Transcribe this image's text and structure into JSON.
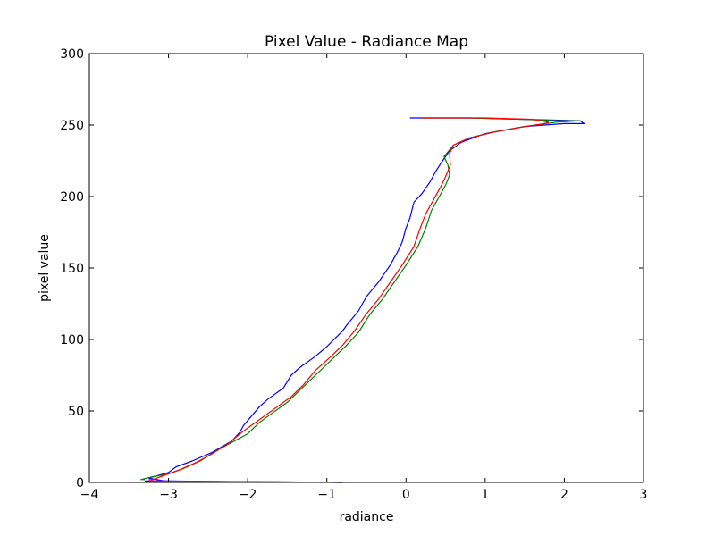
{
  "chart_data": {
    "type": "line",
    "title": "Pixel Value - Radiance Map",
    "xlabel": "radiance",
    "ylabel": "pixel value",
    "xlim": [
      -4,
      3
    ],
    "ylim": [
      0,
      300
    ],
    "xticks": [
      -4,
      -3,
      -2,
      -1,
      0,
      1,
      2,
      3
    ],
    "yticks": [
      0,
      50,
      100,
      150,
      200,
      250,
      300
    ],
    "grid": false,
    "legend": "none",
    "series": [
      {
        "color": "#0000ff",
        "points": [
          [
            -0.8,
            0
          ],
          [
            -3.05,
            1
          ],
          [
            -3.25,
            3
          ],
          [
            -3.0,
            7
          ],
          [
            -2.9,
            11
          ],
          [
            -2.7,
            15
          ],
          [
            -2.45,
            21
          ],
          [
            -2.2,
            29
          ],
          [
            -2.1,
            35
          ],
          [
            -2.05,
            40
          ],
          [
            -1.85,
            53
          ],
          [
            -1.75,
            58
          ],
          [
            -1.55,
            66
          ],
          [
            -1.45,
            75
          ],
          [
            -1.35,
            80
          ],
          [
            -1.15,
            88
          ],
          [
            -1.0,
            95
          ],
          [
            -0.8,
            106
          ],
          [
            -0.75,
            110
          ],
          [
            -0.6,
            120
          ],
          [
            -0.5,
            130
          ],
          [
            -0.35,
            140
          ],
          [
            -0.2,
            152
          ],
          [
            -0.1,
            162
          ],
          [
            -0.05,
            168
          ],
          [
            0.0,
            178
          ],
          [
            0.05,
            185
          ],
          [
            0.1,
            196
          ],
          [
            0.2,
            202
          ],
          [
            0.3,
            210
          ],
          [
            0.38,
            218
          ],
          [
            0.45,
            224
          ],
          [
            0.55,
            232
          ],
          [
            0.7,
            238
          ],
          [
            1.0,
            244
          ],
          [
            1.5,
            249
          ],
          [
            2.0,
            251
          ],
          [
            2.25,
            251
          ],
          [
            2.2,
            253
          ],
          [
            1.5,
            254
          ],
          [
            0.8,
            255
          ],
          [
            0.05,
            255
          ]
        ]
      },
      {
        "color": "#007f00",
        "points": [
          [
            -3.3,
            2
          ],
          [
            -3.35,
            2
          ],
          [
            -3.2,
            4
          ],
          [
            -3.0,
            6
          ],
          [
            -2.8,
            10
          ],
          [
            -2.6,
            15
          ],
          [
            -2.4,
            22
          ],
          [
            -2.2,
            28
          ],
          [
            -2.0,
            34
          ],
          [
            -1.85,
            42
          ],
          [
            -1.7,
            48
          ],
          [
            -1.5,
            56
          ],
          [
            -1.35,
            64
          ],
          [
            -1.2,
            72
          ],
          [
            -1.05,
            80
          ],
          [
            -0.9,
            88
          ],
          [
            -0.75,
            96
          ],
          [
            -0.6,
            105
          ],
          [
            -0.45,
            118
          ],
          [
            -0.3,
            128
          ],
          [
            -0.15,
            140
          ],
          [
            0.0,
            152
          ],
          [
            0.15,
            165
          ],
          [
            0.25,
            178
          ],
          [
            0.32,
            190
          ],
          [
            0.42,
            200
          ],
          [
            0.5,
            208
          ],
          [
            0.55,
            215
          ],
          [
            0.53,
            222
          ],
          [
            0.48,
            228
          ],
          [
            0.6,
            236
          ],
          [
            0.8,
            241
          ],
          [
            1.1,
            245
          ],
          [
            1.5,
            249
          ],
          [
            1.9,
            252
          ],
          [
            2.2,
            253
          ],
          [
            1.9,
            253
          ],
          [
            1.5,
            254
          ],
          [
            0.8,
            255
          ],
          [
            0.2,
            255
          ]
        ]
      },
      {
        "color": "#ff0000",
        "points": [
          [
            -3.25,
            2
          ],
          [
            -3.2,
            2
          ],
          [
            -3.05,
            5
          ],
          [
            -2.85,
            9
          ],
          [
            -2.65,
            14
          ],
          [
            -2.45,
            20
          ],
          [
            -2.25,
            27
          ],
          [
            -2.05,
            36
          ],
          [
            -1.85,
            44
          ],
          [
            -1.65,
            52
          ],
          [
            -1.45,
            60
          ],
          [
            -1.3,
            68
          ],
          [
            -1.15,
            78
          ],
          [
            -0.95,
            88
          ],
          [
            -0.8,
            96
          ],
          [
            -0.65,
            106
          ],
          [
            -0.5,
            118
          ],
          [
            -0.35,
            128
          ],
          [
            -0.2,
            140
          ],
          [
            -0.05,
            152
          ],
          [
            0.1,
            165
          ],
          [
            0.18,
            178
          ],
          [
            0.25,
            188
          ],
          [
            0.35,
            198
          ],
          [
            0.45,
            208
          ],
          [
            0.5,
            214
          ],
          [
            0.56,
            222
          ],
          [
            0.55,
            230
          ],
          [
            0.6,
            236
          ],
          [
            0.8,
            241
          ],
          [
            1.1,
            245
          ],
          [
            1.4,
            248
          ],
          [
            1.75,
            251
          ],
          [
            1.8,
            252
          ],
          [
            1.6,
            254
          ],
          [
            1.0,
            255
          ],
          [
            0.2,
            255
          ]
        ]
      },
      {
        "color": "#0000ff",
        "points": [
          [
            -3.3,
            1
          ],
          [
            -3.0,
            1
          ],
          [
            -2.5,
            0.5
          ],
          [
            -1.5,
            0.3
          ],
          [
            -0.8,
            0
          ]
        ]
      },
      {
        "color": "#bf00bf",
        "points": [
          [
            -3.25,
            1.2
          ],
          [
            -2.8,
            0.8
          ],
          [
            -2.2,
            0.5
          ],
          [
            -1.6,
            0.3
          ]
        ]
      }
    ]
  }
}
